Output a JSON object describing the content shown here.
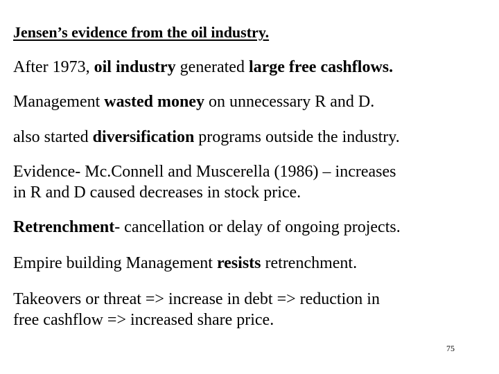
{
  "slide": {
    "title": "Jensen’s evidence from the oil industry.",
    "p1": {
      "a": "After 1973, ",
      "b": "oil industry",
      "c": " generated ",
      "d": "large free cashflows."
    },
    "p2": {
      "a": "Management ",
      "b": "wasted money",
      "c": " on unnecessary R and D."
    },
    "p3": {
      "a": "also started ",
      "b": "diversification",
      "c": " programs outside the industry."
    },
    "p4": {
      "line1": "Evidence- Mc.Connell and Muscerella (1986) – increases",
      "line2": "in R and D caused decreases in stock price."
    },
    "p5": {
      "a": "Retrenchment",
      "b": "- cancellation or delay of ongoing projects."
    },
    "p6": {
      "a": "Empire building Management ",
      "b": "resists",
      "c": " retrenchment."
    },
    "p7": {
      "line1": "Takeovers or threat => increase in debt => reduction in",
      "line2": "free cashflow => increased share price."
    },
    "page_number": "75"
  }
}
